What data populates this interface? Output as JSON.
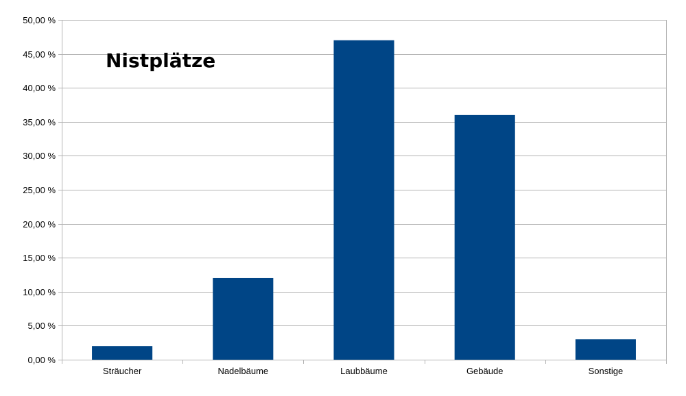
{
  "chart_data": {
    "type": "bar",
    "title": "Nistplätze",
    "categories": [
      "Sträucher",
      "Nadelbäume",
      "Laubbäume",
      "Gebäude",
      "Sonstige"
    ],
    "values": [
      2,
      12,
      47,
      36,
      3
    ],
    "ylim": [
      0,
      50
    ],
    "yticks": [
      0,
      5,
      10,
      15,
      20,
      25,
      30,
      35,
      40,
      45,
      50
    ],
    "ytick_labels": [
      "0,00 %",
      "5,00 %",
      "10,00 %",
      "15,00 %",
      "20,00 %",
      "25,00 %",
      "30,00 %",
      "35,00 %",
      "40,00 %",
      "45,00 %",
      "50,00 %"
    ],
    "xlabel": "",
    "ylabel": "",
    "grid": true,
    "legend": "none",
    "bar_color": "#004586",
    "grid_color": "#b3b3b3"
  }
}
